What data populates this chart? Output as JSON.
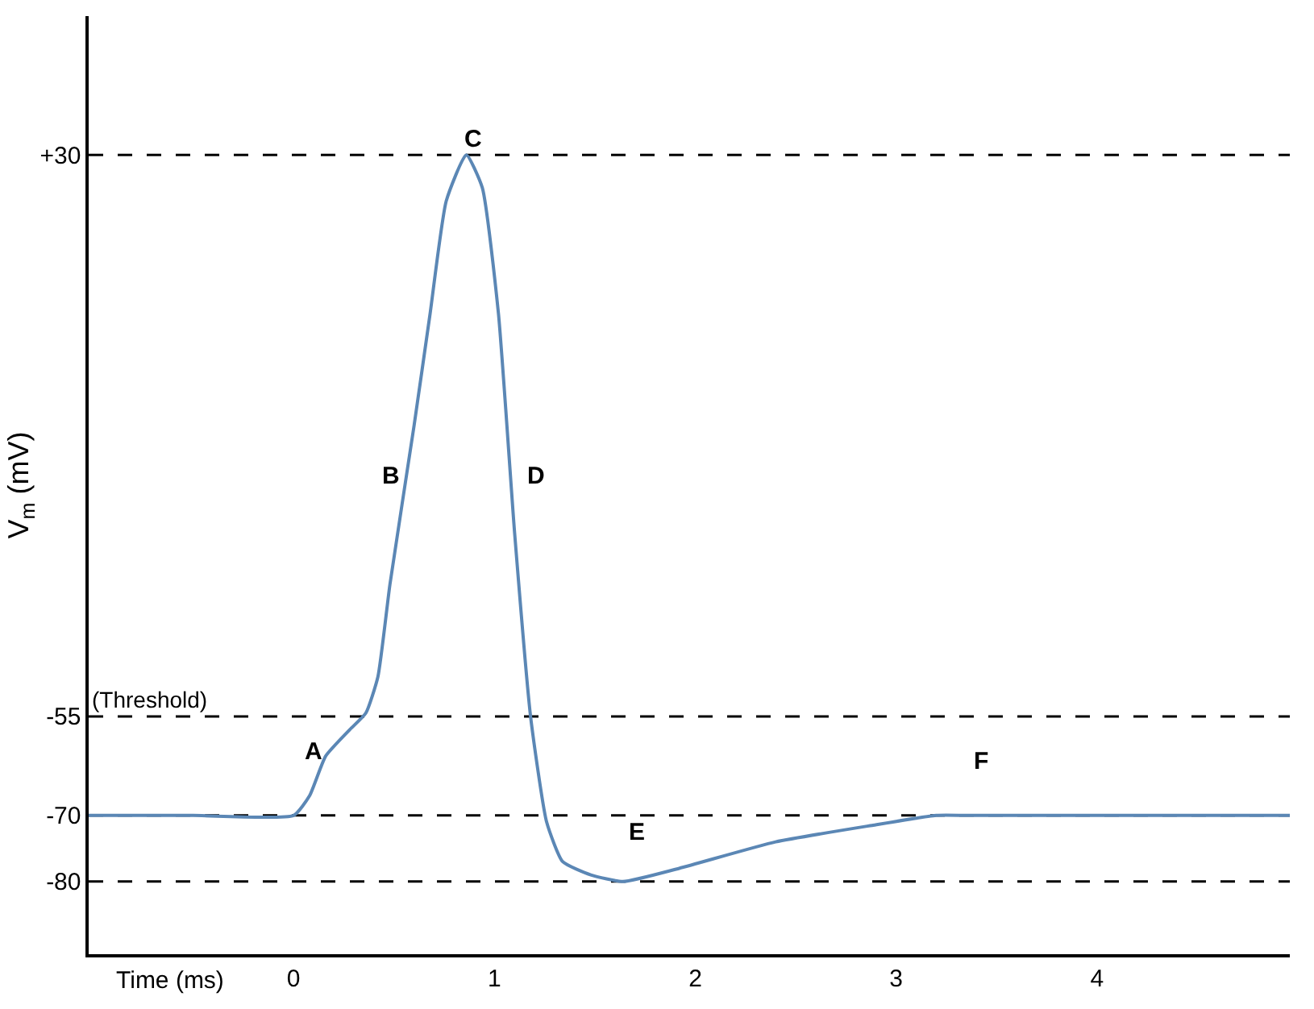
{
  "chart_data": {
    "type": "line",
    "xlabel": "Time (ms)",
    "ylabel": "V$_{m}$ (mV)",
    "x": [
      -1.02,
      -0.5,
      0,
      0.08,
      0.16,
      0.28,
      0.36,
      0.42,
      0.48,
      0.6,
      0.68,
      0.76,
      0.86,
      0.94,
      1.02,
      1.1,
      1.18,
      1.26,
      1.34,
      1.48,
      1.64,
      1.92,
      2.4,
      2.88,
      3.2,
      3.36,
      4.96
    ],
    "series": [
      {
        "color": "#5b87b5",
        "values": [
          -70,
          -70,
          -70,
          -67,
          -61,
          -57,
          -54.5,
          -49,
          -35,
          -11,
          6,
          23,
          30,
          25,
          6,
          -27,
          -55,
          -71,
          -77,
          -79,
          -80,
          -78,
          -74,
          -71.5,
          -70,
          -70,
          -70
        ]
      }
    ],
    "xlim": [
      -1.02,
      4.96
    ],
    "ylim": [
      -91,
      51
    ],
    "xticks": [
      0,
      1,
      2,
      3,
      4
    ],
    "yticks": [
      {
        "value": 30,
        "label": "+30"
      },
      -55,
      -70,
      -80
    ],
    "ref_lines": [
      {
        "axis": "y",
        "value": 30,
        "label": null,
        "color": "#000000",
        "line_style": "dashed"
      },
      {
        "axis": "y",
        "value": -55,
        "label": "(Threshold)",
        "color": "#000000",
        "line_style": "dashed"
      },
      {
        "axis": "y",
        "value": -70,
        "label": null,
        "color": "#000000",
        "line_style": "dashed"
      },
      {
        "axis": "y",
        "value": -80,
        "label": null,
        "color": "#000000",
        "line_style": "dashed"
      }
    ],
    "annotations": [
      "A",
      "B",
      "C",
      "D",
      "E",
      "F"
    ],
    "grid": false,
    "marker": "none",
    "line_style": "solid"
  }
}
